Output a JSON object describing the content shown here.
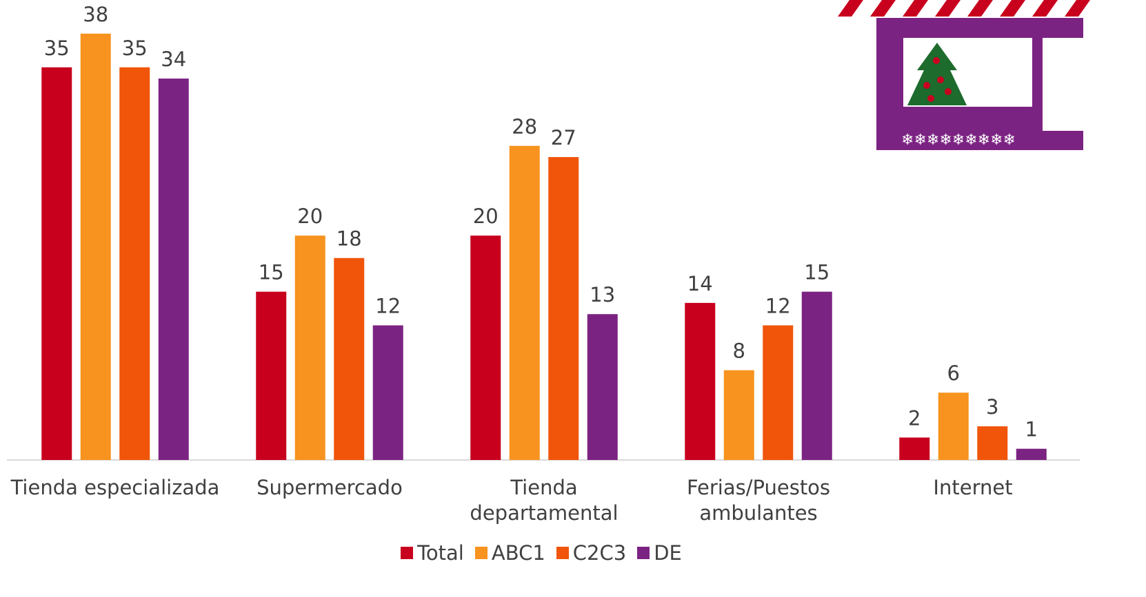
{
  "chart_data": {
    "type": "bar",
    "categories": [
      "Tienda especializada",
      "Supermercado",
      "Tienda\ndepartamental",
      "Ferias/Puestos\nambulantes",
      "Internet"
    ],
    "series": [
      {
        "name": "Total",
        "color": "#c8001e",
        "values": [
          35,
          15,
          20,
          14,
          2
        ]
      },
      {
        "name": "ABC1",
        "color": "#f7931e",
        "values": [
          38,
          20,
          28,
          8,
          6
        ]
      },
      {
        "name": "C2C3",
        "color": "#f0550a",
        "values": [
          35,
          18,
          27,
          12,
          3
        ]
      },
      {
        "name": "DE",
        "color": "#7b2382",
        "values": [
          34,
          12,
          13,
          15,
          1
        ]
      }
    ],
    "ylim": [
      0,
      41
    ],
    "legend": "bottom"
  }
}
